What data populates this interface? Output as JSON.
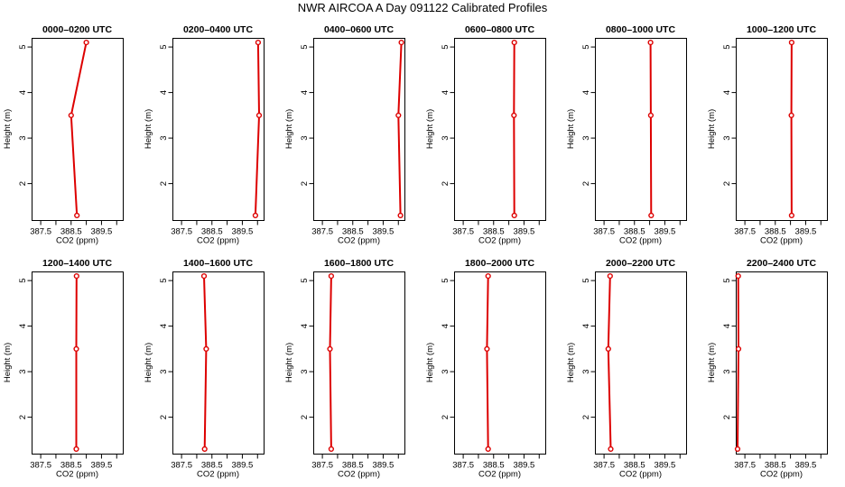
{
  "title": "NWR AIRCOA A  Day 091122  Calibrated Profiles",
  "colors": {
    "series": "#dd0000",
    "axis": "#000000"
  },
  "chart_data": [
    {
      "type": "line",
      "title": "0000–0200 UTC",
      "xlabel": "CO2 (ppm)",
      "ylabel": "Height (m)",
      "xlim": [
        387.2,
        390.2
      ],
      "ylim": [
        1.2,
        5.2
      ],
      "xticks": [
        "387.5",
        "388.5",
        "389.5"
      ],
      "xminor": [
        388.0,
        389.0,
        390.0
      ],
      "yticks": [
        "2",
        "3",
        "4",
        "5"
      ],
      "x": [
        388.69,
        388.5,
        389.0
      ],
      "y": [
        1.3,
        3.5,
        5.1
      ],
      "grid": false,
      "legend": "none"
    },
    {
      "type": "line",
      "title": "0200–0400 UTC",
      "xlabel": "CO2 (ppm)",
      "ylabel": "Height (m)",
      "xlim": [
        387.2,
        390.2
      ],
      "ylim": [
        1.2,
        5.2
      ],
      "xticks": [
        "387.5",
        "388.5",
        "389.5"
      ],
      "xminor": [
        388.0,
        389.0,
        390.0
      ],
      "yticks": [
        "2",
        "3",
        "4",
        "5"
      ],
      "x": [
        389.93,
        390.05,
        390.02
      ],
      "y": [
        1.3,
        3.5,
        5.1
      ],
      "grid": false,
      "legend": "none"
    },
    {
      "type": "line",
      "title": "0400–0600 UTC",
      "xlabel": "CO2 (ppm)",
      "ylabel": "Height (m)",
      "xlim": [
        387.2,
        390.2
      ],
      "ylim": [
        1.2,
        5.2
      ],
      "xticks": [
        "387.5",
        "388.5",
        "389.5"
      ],
      "xminor": [
        388.0,
        389.0,
        390.0
      ],
      "yticks": [
        "2",
        "3",
        "4",
        "5"
      ],
      "x": [
        390.07,
        390.0,
        390.1
      ],
      "y": [
        1.3,
        3.5,
        5.1
      ],
      "grid": false,
      "legend": "none"
    },
    {
      "type": "line",
      "title": "0600–0800 UTC",
      "xlabel": "CO2 (ppm)",
      "ylabel": "Height (m)",
      "xlim": [
        387.2,
        390.2
      ],
      "ylim": [
        1.2,
        5.2
      ],
      "xticks": [
        "387.5",
        "388.5",
        "389.5"
      ],
      "xminor": [
        388.0,
        389.0,
        390.0
      ],
      "yticks": [
        "2",
        "3",
        "4",
        "5"
      ],
      "x": [
        389.18,
        389.17,
        389.18
      ],
      "y": [
        1.3,
        3.5,
        5.1
      ],
      "grid": false,
      "legend": "none"
    },
    {
      "type": "line",
      "title": "0800–1000 UTC",
      "xlabel": "CO2 (ppm)",
      "ylabel": "Height (m)",
      "xlim": [
        387.2,
        390.2
      ],
      "ylim": [
        1.2,
        5.2
      ],
      "xticks": [
        "387.5",
        "388.5",
        "389.5"
      ],
      "xminor": [
        388.0,
        389.0,
        390.0
      ],
      "yticks": [
        "2",
        "3",
        "4",
        "5"
      ],
      "x": [
        389.05,
        389.04,
        389.03
      ],
      "y": [
        1.3,
        3.5,
        5.1
      ],
      "grid": false,
      "legend": "none"
    },
    {
      "type": "line",
      "title": "1000–1200 UTC",
      "xlabel": "CO2 (ppm)",
      "ylabel": "Height (m)",
      "xlim": [
        387.2,
        390.2
      ],
      "ylim": [
        1.2,
        5.2
      ],
      "xticks": [
        "387.5",
        "388.5",
        "389.5"
      ],
      "xminor": [
        388.0,
        389.0,
        390.0
      ],
      "yticks": [
        "2",
        "3",
        "4",
        "5"
      ],
      "x": [
        389.04,
        389.03,
        389.04
      ],
      "y": [
        1.3,
        3.5,
        5.1
      ],
      "grid": false,
      "legend": "none"
    },
    {
      "type": "line",
      "title": "1200–1400 UTC",
      "xlabel": "CO2 (ppm)",
      "ylabel": "Height (m)",
      "xlim": [
        387.2,
        390.2
      ],
      "ylim": [
        1.2,
        5.2
      ],
      "xticks": [
        "387.5",
        "388.5",
        "389.5"
      ],
      "xminor": [
        388.0,
        389.0,
        390.0
      ],
      "yticks": [
        "2",
        "3",
        "4",
        "5"
      ],
      "x": [
        388.67,
        388.67,
        388.68
      ],
      "y": [
        1.3,
        3.5,
        5.1
      ],
      "grid": false,
      "legend": "none"
    },
    {
      "type": "line",
      "title": "1400–1600 UTC",
      "xlabel": "CO2 (ppm)",
      "ylabel": "Height (m)",
      "xlim": [
        387.2,
        390.2
      ],
      "ylim": [
        1.2,
        5.2
      ],
      "xticks": [
        "387.5",
        "388.5",
        "389.5"
      ],
      "xminor": [
        388.0,
        389.0,
        390.0
      ],
      "yticks": [
        "2",
        "3",
        "4",
        "5"
      ],
      "x": [
        388.26,
        388.31,
        388.24
      ],
      "y": [
        1.3,
        3.5,
        5.1
      ],
      "grid": false,
      "legend": "none"
    },
    {
      "type": "line",
      "title": "1600–1800 UTC",
      "xlabel": "CO2 (ppm)",
      "ylabel": "Height (m)",
      "xlim": [
        387.2,
        390.2
      ],
      "ylim": [
        1.2,
        5.2
      ],
      "xticks": [
        "387.5",
        "388.5",
        "389.5"
      ],
      "xminor": [
        388.0,
        389.0,
        390.0
      ],
      "yticks": [
        "2",
        "3",
        "4",
        "5"
      ],
      "x": [
        387.79,
        387.75,
        387.79
      ],
      "y": [
        1.3,
        3.5,
        5.1
      ],
      "grid": false,
      "legend": "none"
    },
    {
      "type": "line",
      "title": "1800–2000 UTC",
      "xlabel": "CO2 (ppm)",
      "ylabel": "Height (m)",
      "xlim": [
        387.2,
        390.2
      ],
      "ylim": [
        1.2,
        5.2
      ],
      "xticks": [
        "387.5",
        "388.5",
        "389.5"
      ],
      "xminor": [
        388.0,
        389.0,
        390.0
      ],
      "yticks": [
        "2",
        "3",
        "4",
        "5"
      ],
      "x": [
        388.32,
        388.28,
        388.32
      ],
      "y": [
        1.3,
        3.5,
        5.1
      ],
      "grid": false,
      "legend": "none"
    },
    {
      "type": "line",
      "title": "2000–2200 UTC",
      "xlabel": "CO2 (ppm)",
      "ylabel": "Height (m)",
      "xlim": [
        387.2,
        390.2
      ],
      "ylim": [
        1.2,
        5.2
      ],
      "xticks": [
        "387.5",
        "388.5",
        "389.5"
      ],
      "xminor": [
        388.0,
        389.0,
        390.0
      ],
      "yticks": [
        "2",
        "3",
        "4",
        "5"
      ],
      "x": [
        387.72,
        387.64,
        387.7
      ],
      "y": [
        1.3,
        3.5,
        5.1
      ],
      "grid": false,
      "legend": "none"
    },
    {
      "type": "line",
      "title": "2200–2400 UTC",
      "xlabel": "CO2 (ppm)",
      "ylabel": "Height (m)",
      "xlim": [
        387.2,
        390.2
      ],
      "ylim": [
        1.2,
        5.2
      ],
      "xticks": [
        "387.5",
        "388.5",
        "389.5"
      ],
      "xminor": [
        388.0,
        389.0,
        390.0
      ],
      "yticks": [
        "2",
        "3",
        "4",
        "5"
      ],
      "x": [
        387.26,
        387.29,
        387.28
      ],
      "y": [
        1.3,
        3.5,
        5.1
      ],
      "grid": false,
      "legend": "none"
    }
  ]
}
